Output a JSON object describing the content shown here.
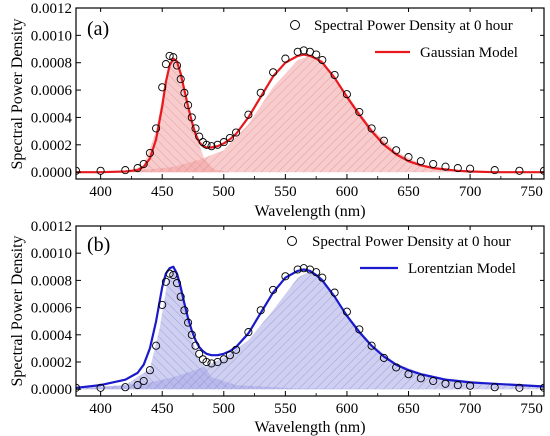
{
  "chart_data": [
    {
      "type": "line",
      "panel_label": "(a)",
      "xlabel": "Wavelength (nm)",
      "ylabel": "Spectral Power Density",
      "xlim": [
        380,
        760
      ],
      "ylim": [
        -5e-05,
        0.0012
      ],
      "x_ticks": [
        "400",
        "450",
        "500",
        "550",
        "600",
        "650",
        "700",
        "750"
      ],
      "y_ticks": [
        "0.0000",
        "0.0002",
        "0.0004",
        "0.0006",
        "0.0008",
        "0.0010",
        "0.0012"
      ],
      "legend": {
        "placement": "top-right"
      },
      "colors": {
        "model": "#e8191e",
        "fill": "#f2a3a3",
        "hatch": "#c46060",
        "points": "#000000"
      },
      "measured": {
        "name": "Spectral Power Density at 0 hour",
        "x": [
          380,
          400,
          420,
          430,
          435,
          440,
          445,
          450,
          453,
          456,
          459,
          462,
          465,
          468,
          471,
          474,
          477,
          480,
          483,
          486,
          490,
          495,
          500,
          505,
          510,
          520,
          530,
          540,
          550,
          560,
          565,
          570,
          575,
          580,
          590,
          600,
          610,
          620,
          630,
          640,
          650,
          660,
          670,
          680,
          690,
          700,
          720,
          740,
          760
        ],
        "y": [
          1e-05,
          1e-05,
          1.5e-05,
          3e-05,
          6e-05,
          0.00014,
          0.00032,
          0.00062,
          0.00079,
          0.00085,
          0.00084,
          0.00078,
          0.00068,
          0.00058,
          0.00049,
          0.0004,
          0.00032,
          0.00026,
          0.00022,
          0.0002,
          0.00019,
          0.0002,
          0.00022,
          0.00025,
          0.00029,
          0.00042,
          0.00058,
          0.00073,
          0.00083,
          0.00088,
          0.00089,
          0.00088,
          0.00086,
          0.00082,
          0.00071,
          0.00057,
          0.00044,
          0.00032,
          0.00023,
          0.00016,
          0.00011,
          8e-05,
          6e-05,
          4e-05,
          3e-05,
          2.5e-05,
          1.5e-05,
          1e-05,
          1e-05
        ]
      },
      "model": {
        "name": "Gaussian Model",
        "x": [
          380,
          400,
          420,
          430,
          435,
          440,
          445,
          450,
          453,
          456,
          459,
          462,
          465,
          468,
          471,
          474,
          477,
          480,
          483,
          486,
          490,
          495,
          500,
          505,
          510,
          520,
          530,
          540,
          550,
          560,
          565,
          570,
          575,
          580,
          590,
          600,
          610,
          620,
          630,
          640,
          650,
          660,
          670,
          680,
          690,
          700,
          720,
          740,
          760
        ],
        "y": [
          0.0,
          0.0,
          5e-06,
          1.5e-05,
          4e-05,
          0.0001,
          0.00024,
          0.00048,
          0.00066,
          0.00078,
          0.00083,
          0.00081,
          0.00072,
          0.0006,
          0.00048,
          0.00037,
          0.00028,
          0.00022,
          0.00019,
          0.00018,
          0.00018,
          0.00019,
          0.00021,
          0.00024,
          0.00028,
          0.0004,
          0.00055,
          0.0007,
          0.0008,
          0.00085,
          0.00086,
          0.00085,
          0.00083,
          0.0008,
          0.00069,
          0.00055,
          0.00042,
          0.0003,
          0.0002,
          0.00013,
          8e-05,
          5e-05,
          3e-05,
          2e-05,
          1e-05,
          5e-06,
          0.0,
          0.0,
          0.0
        ]
      },
      "components": [
        {
          "x": [
            380,
            420,
            435,
            445,
            452,
            458,
            463,
            470,
            477,
            484,
            492,
            505
          ],
          "y": [
            0.0,
            0.0,
            5e-05,
            0.0003,
            0.00065,
            0.00083,
            0.00078,
            0.00055,
            0.00028,
            0.0001,
            2e-05,
            0.0
          ]
        },
        {
          "x": [
            380,
            400,
            420,
            440,
            460,
            480,
            500,
            520,
            540,
            560,
            570,
            580,
            600,
            620,
            640,
            660,
            680,
            700,
            720,
            740,
            760
          ],
          "y": [
            0.0,
            5e-06,
            1e-05,
            2e-05,
            4e-05,
            9e-05,
            0.00016,
            0.00035,
            0.00062,
            0.00082,
            0.00085,
            0.00082,
            0.00057,
            0.00032,
            0.00015,
            6e-05,
            2e-05,
            5e-06,
            0.0,
            0.0,
            0.0
          ]
        }
      ]
    },
    {
      "type": "line",
      "panel_label": "(b)",
      "xlabel": "Wavelength (nm)",
      "ylabel": "Spectral Power Density",
      "xlim": [
        380,
        760
      ],
      "ylim": [
        -5e-05,
        0.0012
      ],
      "x_ticks": [
        "400",
        "450",
        "500",
        "550",
        "600",
        "650",
        "700",
        "750"
      ],
      "y_ticks": [
        "0.0000",
        "0.0002",
        "0.0004",
        "0.0006",
        "0.0008",
        "0.0010",
        "0.0012"
      ],
      "legend": {
        "placement": "top-right"
      },
      "colors": {
        "model": "#1a1acc",
        "fill": "#a7a7e6",
        "hatch": "#6060b8",
        "points": "#000000"
      },
      "measured": {
        "name": "Spectral Power Density at 0 hour",
        "x": [
          380,
          400,
          420,
          430,
          435,
          440,
          445,
          450,
          453,
          456,
          459,
          462,
          465,
          468,
          471,
          474,
          477,
          480,
          483,
          486,
          490,
          495,
          500,
          505,
          510,
          520,
          530,
          540,
          550,
          560,
          565,
          570,
          575,
          580,
          590,
          600,
          610,
          620,
          630,
          640,
          650,
          660,
          670,
          680,
          690,
          700,
          720,
          740,
          760
        ],
        "y": [
          1e-05,
          1e-05,
          1.5e-05,
          3e-05,
          6e-05,
          0.00014,
          0.00032,
          0.00062,
          0.00079,
          0.00085,
          0.00084,
          0.00078,
          0.00068,
          0.00058,
          0.00049,
          0.0004,
          0.00032,
          0.00026,
          0.00022,
          0.0002,
          0.00019,
          0.0002,
          0.00022,
          0.00025,
          0.00029,
          0.00042,
          0.00058,
          0.00073,
          0.00083,
          0.00088,
          0.00089,
          0.00088,
          0.00086,
          0.00082,
          0.00071,
          0.00057,
          0.00044,
          0.00032,
          0.00023,
          0.00016,
          0.00011,
          8e-05,
          6e-05,
          4e-05,
          3e-05,
          2.5e-05,
          1.5e-05,
          1e-05,
          1e-05
        ]
      },
      "model": {
        "name": "Lorentzian Model",
        "x": [
          380,
          400,
          420,
          430,
          435,
          440,
          445,
          450,
          453,
          456,
          459,
          462,
          465,
          468,
          471,
          474,
          477,
          480,
          483,
          486,
          490,
          495,
          500,
          505,
          510,
          520,
          530,
          540,
          550,
          560,
          565,
          570,
          575,
          580,
          590,
          600,
          610,
          620,
          630,
          640,
          650,
          660,
          670,
          680,
          690,
          700,
          720,
          740,
          760
        ],
        "y": [
          1e-05,
          3e-05,
          7e-05,
          0.00012,
          0.00018,
          0.0003,
          0.0005,
          0.00075,
          0.00085,
          0.00089,
          0.0009,
          0.00085,
          0.00075,
          0.00063,
          0.00052,
          0.00043,
          0.00036,
          0.00031,
          0.00028,
          0.00026,
          0.00025,
          0.00025,
          0.00026,
          0.00028,
          0.00031,
          0.00041,
          0.00056,
          0.00071,
          0.00082,
          0.00087,
          0.00088,
          0.00087,
          0.00084,
          0.0008,
          0.00068,
          0.00054,
          0.00042,
          0.00032,
          0.00024,
          0.00018,
          0.00014,
          0.00011,
          9e-05,
          7e-05,
          6e-05,
          5e-05,
          4e-05,
          3e-05,
          2e-05
        ]
      },
      "components": [
        {
          "x": [
            380,
            420,
            440,
            448,
            454,
            459,
            464,
            470,
            478,
            490,
            510,
            560,
            760
          ],
          "y": [
            0.0,
            3e-05,
            0.00015,
            0.00045,
            0.00078,
            0.00088,
            0.0008,
            0.00052,
            0.00025,
            9e-05,
            3e-05,
            5e-06,
            0.0
          ]
        },
        {
          "x": [
            380,
            400,
            420,
            440,
            460,
            480,
            500,
            520,
            540,
            560,
            570,
            580,
            600,
            620,
            640,
            660,
            680,
            700,
            720,
            740,
            760
          ],
          "y": [
            1e-05,
            2e-05,
            3e-05,
            5e-05,
            9e-05,
            0.00015,
            0.00023,
            0.00036,
            0.00058,
            0.00082,
            0.00087,
            0.00082,
            0.00055,
            0.00033,
            0.00019,
            0.00012,
            8e-05,
            6e-05,
            4e-05,
            3e-05,
            2e-05
          ]
        }
      ]
    }
  ]
}
